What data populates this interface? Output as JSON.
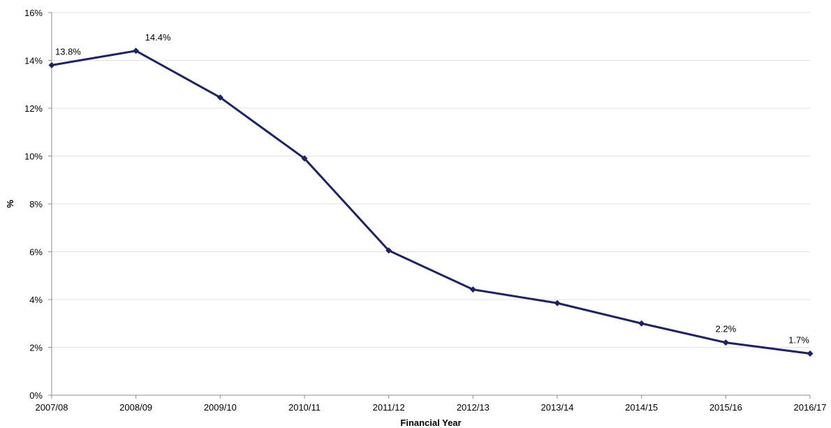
{
  "chart_data": {
    "type": "line",
    "title": "",
    "xlabel": "Financial Year",
    "ylabel": "%",
    "categories": [
      "2007/08",
      "2008/09",
      "2009/10",
      "2010/11",
      "2011/12",
      "2012/13",
      "2013/14",
      "2014/15",
      "2015/16",
      "2016/17"
    ],
    "series": [
      {
        "values": [
          13.8,
          14.4,
          12.45,
          9.9,
          6.05,
          4.42,
          3.85,
          3.0,
          2.2,
          1.74
        ],
        "color": "#1a2466",
        "marker": "diamond"
      }
    ],
    "data_labels": [
      {
        "index": 0,
        "text": "13.8%"
      },
      {
        "index": 1,
        "text": "14.4%"
      },
      {
        "index": 8,
        "text": "2.2%"
      },
      {
        "index": 9,
        "text": "1.7%"
      }
    ],
    "ylim": [
      0,
      16
    ],
    "yticks": [
      0,
      2,
      4,
      6,
      8,
      10,
      12,
      14,
      16
    ],
    "ytick_labels": [
      "0%",
      "2%",
      "4%",
      "6%",
      "8%",
      "10%",
      "12%",
      "14%",
      "16%"
    ],
    "grid": true,
    "legend": "none"
  }
}
